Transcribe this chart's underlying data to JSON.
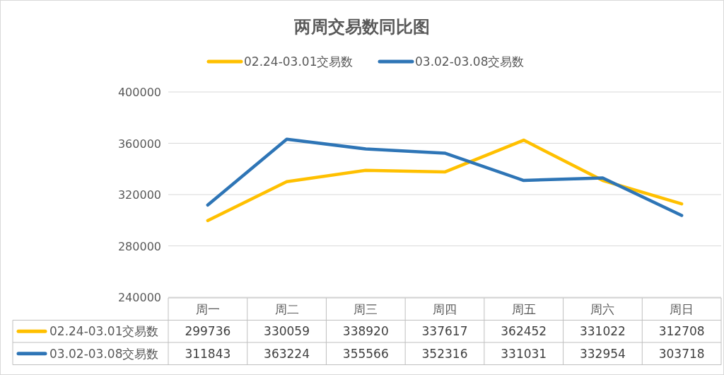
{
  "chart_data": {
    "type": "line",
    "title": "两周交易数同比图",
    "categories": [
      "周一",
      "周二",
      "周三",
      "周四",
      "周五",
      "周六",
      "周日"
    ],
    "series": [
      {
        "name": "02.24-03.01交易数",
        "color": "#ffc000",
        "values": [
          299736,
          330059,
          338920,
          337617,
          362452,
          331022,
          312708
        ]
      },
      {
        "name": "03.02-03.08交易数",
        "color": "#2e75b6",
        "values": [
          311843,
          363224,
          355566,
          352316,
          331031,
          332954,
          303718
        ]
      }
    ],
    "ylim": [
      240000,
      400000
    ],
    "yticks": [
      240000,
      280000,
      320000,
      360000,
      400000
    ],
    "grid": "y",
    "legend": "top",
    "data_labels": true,
    "line_style": "solid",
    "marker": "none"
  }
}
